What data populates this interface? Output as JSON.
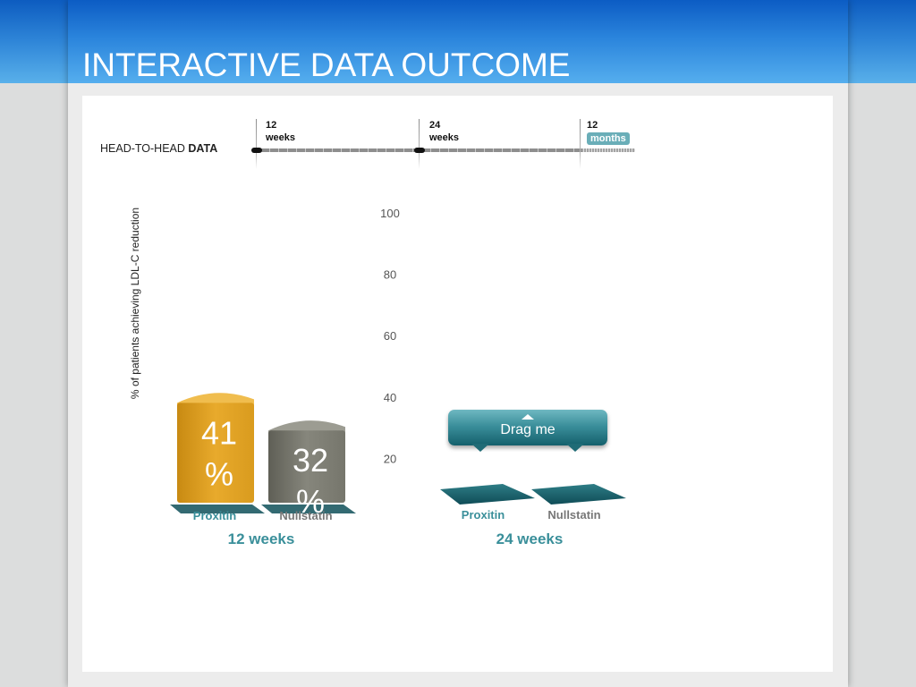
{
  "header": {
    "title": "INTERACTIVE DATA OUTCOME"
  },
  "timeline": {
    "label_prefix": "HEAD-TO-HEAD ",
    "label_bold": "DATA",
    "points": [
      {
        "num": "12",
        "unit": "weeks",
        "active": false
      },
      {
        "num": "24",
        "unit": "weeks",
        "active": false
      },
      {
        "num": "12",
        "unit": "months",
        "active": true
      }
    ]
  },
  "drag_handle": {
    "label": "Drag me"
  },
  "colors": {
    "proxitin": "#e2a42a",
    "nullstatin": "#7c7c70",
    "accent_teal": "#3a8f9a",
    "gridline": "#3f7f92"
  },
  "chart_data": {
    "type": "bar",
    "ylabel": "% of patients achieving LDL-C reduction",
    "ylim": [
      0,
      100
    ],
    "yticks": [
      20,
      40,
      60,
      80,
      100
    ],
    "groups": [
      {
        "label": "12 weeks",
        "bars": [
          {
            "name": "Proxitin",
            "value": 41,
            "value_label": "41 %"
          },
          {
            "name": "Nullstatin",
            "value": 32,
            "value_label": "32 %"
          }
        ]
      },
      {
        "label": "24 weeks",
        "bars": [
          {
            "name": "Proxitin",
            "value": null,
            "value_label": ""
          },
          {
            "name": "Nullstatin",
            "value": null,
            "value_label": ""
          }
        ]
      }
    ]
  }
}
